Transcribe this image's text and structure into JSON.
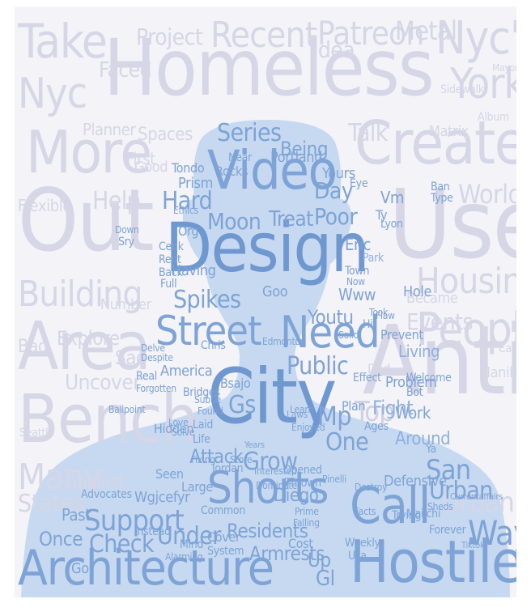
{
  "background_words": [
    "Homeless",
    "Anti",
    "Use",
    "Out",
    "Area",
    "Bench",
    "More",
    "Create",
    "Take",
    "Nyc",
    "York",
    "Nyc's",
    "Recent",
    "Project",
    "Patreon",
    "Metal",
    "Building",
    "People",
    "Housing",
    "Urban",
    "Many",
    "States",
    "Talk",
    "Planner",
    "Spaces",
    "Help",
    "World",
    "Flexible",
    "Explore",
    "Events",
    "Uncover",
    "Against",
    "Faced",
    "Idea",
    "Bad",
    "Sad",
    "Number",
    "Manila",
    "Top",
    "Ded",
    "Living",
    "Fight",
    "Around",
    "Seattle",
    "First",
    "Good",
    "Hole",
    "Became",
    "Cash",
    "Sidewalk",
    "Matrix",
    "Album",
    "Mayor"
  ],
  "foreground_words": [
    "City",
    "Design",
    "Video",
    "Street",
    "Need",
    "Architecture",
    "Hostile",
    "Shorts",
    "Call",
    "Support",
    "Spikes",
    "Hard",
    "Moon",
    "Series",
    "Poor",
    "Treat",
    "Being",
    "Day",
    "Public",
    "Grow",
    "Attack",
    "Residents",
    "Armrests",
    "Check",
    "Under",
    "One",
    "San",
    "Way",
    "Past",
    "Gs",
    "Mp",
    "Youtu",
    "Www",
    "Eric",
    "Park",
    "Diego",
    "Prism",
    "Tondo",
    "Goo",
    "Bsajo",
    "Plan",
    "Problem",
    "Work",
    "Up",
    "Gl",
    "Wgjcefyr",
    "Defensive",
    "Opened",
    "Thrown",
    "Large",
    "Common",
    "Cover",
    "Fixing",
    "Laid",
    "Life",
    "Bridges",
    "America",
    "Jordan",
    "Store",
    "Having",
    "Portland",
    "Rocks",
    "Near",
    "Org",
    "Hidden",
    "Seen",
    "Mind",
    "Cost",
    "Weekly",
    "Ages",
    "Effect",
    "Laws",
    "Usa",
    "Trying",
    "Forever",
    "Currentaffairs",
    "Tiktok",
    "Sheds",
    "Once",
    "Go",
    "Instead",
    "System",
    "Alarming",
    "Interested",
    "Yours",
    "Chris",
    "Dominates",
    "Eye",
    "Ty",
    "Vm",
    "Lyon",
    "Type",
    "Ban",
    "Bot",
    "Welcome",
    "Hit",
    "Took",
    "Prevent",
    "Flaw",
    "Town",
    "Now",
    "Solid",
    "Edmonton",
    "Cenk",
    "Rent",
    "Back",
    "Full",
    "Pinelli",
    "Sry",
    "Down",
    "Ya",
    "Mailchi",
    "Urban",
    "Advocates",
    "Ballpoint",
    "Subtle",
    "Found",
    "Enjoyed",
    "Years",
    "Learn",
    "Prime",
    "Falling",
    "Facts",
    "Living",
    "Fight",
    "Around",
    "Destroy",
    "Solve",
    "Love",
    "Real",
    "Forgotten",
    "Despite",
    "Delve",
    "Hole",
    "Ethics"
  ],
  "colors": {
    "background": "#f3f3f8",
    "silhouette": "#c6d9f0",
    "background_word": "#d6d6e6",
    "foreground_word": "#7ea3d6"
  }
}
